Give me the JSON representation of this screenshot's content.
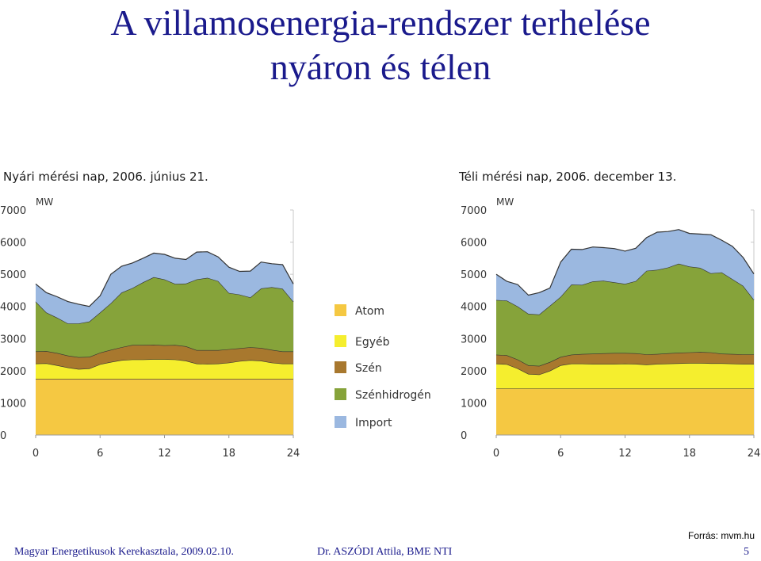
{
  "slide": {
    "title_line1": "A villamosenergia-rendszer terhelése",
    "title_line2": "nyáron és télen",
    "source": "Forrás: mvm.hu",
    "footer_left": "Magyar Energetikusok Kerekasztala, 2009.02.10.",
    "footer_center": "Dr. ASZÓDI Attila, BME NTI",
    "page_number": "5"
  },
  "legend": [
    {
      "name": "Atom",
      "color": "#f5c842"
    },
    {
      "name": "Egyéb",
      "color": "#f5ee2e"
    },
    {
      "name": "Szén",
      "color": "#a8782e"
    },
    {
      "name": "Szénhidrogén",
      "color": "#86a33a"
    },
    {
      "name": "Import",
      "color": "#9bb8e0"
    }
  ],
  "chart_data": [
    {
      "type": "area",
      "stacked": true,
      "title": "Nyári mérési nap, 2006. június 21.",
      "ylabel": "MW",
      "ylim": [
        0,
        7000
      ],
      "xlim": [
        0,
        24
      ],
      "yticks": [
        "0",
        "1000",
        "2000",
        "3000",
        "4000",
        "5000",
        "6000",
        "7000"
      ],
      "xticks": [
        "0",
        "6",
        "12",
        "18",
        "24"
      ],
      "x": [
        0,
        1,
        2,
        3,
        4,
        5,
        6,
        7,
        8,
        9,
        10,
        11,
        12,
        13,
        14,
        15,
        16,
        17,
        18,
        19,
        20,
        21,
        22,
        23,
        24
      ],
      "series": [
        {
          "name": "Atom",
          "values": [
            1750,
            1750,
            1750,
            1750,
            1750,
            1750,
            1750,
            1750,
            1750,
            1750,
            1750,
            1750,
            1750,
            1750,
            1750,
            1750,
            1750,
            1750,
            1750,
            1750,
            1750,
            1750,
            1750,
            1750,
            1750
          ]
        },
        {
          "name": "Egyéb",
          "values": [
            470,
            480,
            420,
            350,
            300,
            320,
            450,
            520,
            580,
            600,
            600,
            610,
            610,
            600,
            560,
            470,
            460,
            470,
            500,
            550,
            580,
            560,
            500,
            470,
            470
          ]
        },
        {
          "name": "Szén",
          "values": [
            380,
            380,
            380,
            370,
            370,
            360,
            360,
            380,
            400,
            450,
            450,
            450,
            430,
            450,
            450,
            420,
            430,
            420,
            420,
            400,
            400,
            400,
            400,
            380,
            380
          ]
        },
        {
          "name": "Szénhidrogén",
          "values": [
            1550,
            1200,
            1100,
            1000,
            1050,
            1100,
            1250,
            1450,
            1700,
            1770,
            1950,
            2100,
            2050,
            1900,
            1950,
            2200,
            2250,
            2150,
            1750,
            1670,
            1550,
            1850,
            1950,
            1950,
            1550
          ]
        },
        {
          "name": "Import",
          "values": [
            550,
            620,
            650,
            680,
            600,
            470,
            520,
            900,
            820,
            780,
            750,
            750,
            780,
            800,
            750,
            850,
            810,
            750,
            800,
            720,
            820,
            820,
            730,
            750,
            550
          ]
        }
      ]
    },
    {
      "type": "area",
      "stacked": true,
      "title": "Téli mérési nap, 2006. december 13.",
      "ylabel": "MW",
      "ylim": [
        0,
        7000
      ],
      "xlim": [
        0,
        24
      ],
      "yticks": [
        "0",
        "1000",
        "2000",
        "3000",
        "4000",
        "5000",
        "6000",
        "7000"
      ],
      "xticks": [
        "0",
        "6",
        "12",
        "18",
        "24"
      ],
      "x": [
        0,
        1,
        2,
        3,
        4,
        5,
        6,
        7,
        8,
        9,
        10,
        11,
        12,
        13,
        14,
        15,
        16,
        17,
        18,
        19,
        20,
        21,
        22,
        23,
        24
      ],
      "series": [
        {
          "name": "Atom",
          "values": [
            1450,
            1450,
            1450,
            1450,
            1450,
            1450,
            1450,
            1450,
            1450,
            1450,
            1450,
            1450,
            1450,
            1450,
            1450,
            1450,
            1450,
            1450,
            1450,
            1450,
            1450,
            1450,
            1450,
            1450,
            1450
          ]
        },
        {
          "name": "Egyéb",
          "values": [
            770,
            750,
            620,
            450,
            430,
            550,
            720,
            770,
            770,
            760,
            760,
            760,
            770,
            760,
            740,
            760,
            770,
            780,
            790,
            790,
            780,
            780,
            770,
            760,
            760
          ]
        },
        {
          "name": "Szén",
          "values": [
            280,
            280,
            280,
            270,
            270,
            270,
            260,
            280,
            300,
            320,
            330,
            340,
            330,
            330,
            320,
            310,
            320,
            330,
            330,
            340,
            340,
            300,
            300,
            300,
            300
          ]
        },
        {
          "name": "Szénhidrogén",
          "values": [
            1700,
            1700,
            1650,
            1600,
            1600,
            1750,
            1870,
            2180,
            2150,
            2250,
            2260,
            2200,
            2150,
            2250,
            2600,
            2620,
            2670,
            2770,
            2670,
            2620,
            2460,
            2530,
            2330,
            2130,
            1700
          ]
        },
        {
          "name": "Import",
          "values": [
            800,
            600,
            680,
            580,
            680,
            550,
            1080,
            1100,
            1100,
            1070,
            1030,
            1050,
            1020,
            1020,
            1030,
            1170,
            1120,
            1060,
            1030,
            1050,
            1200,
            1000,
            1020,
            880,
            800
          ]
        }
      ]
    }
  ]
}
